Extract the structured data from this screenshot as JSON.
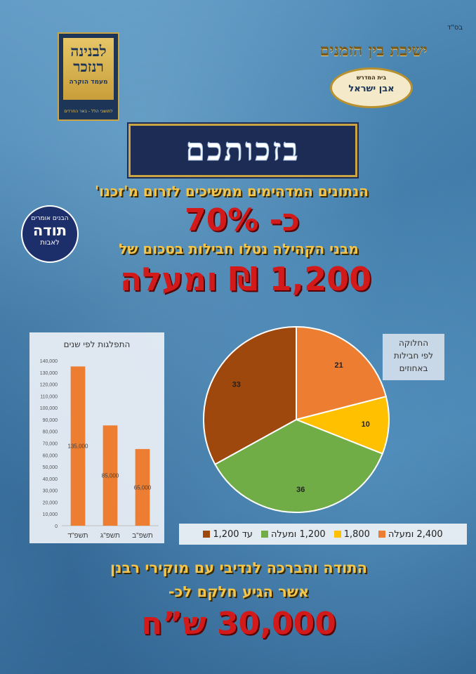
{
  "header": {
    "bsd": "בס\"ד"
  },
  "logo_left": {
    "line1": "לבנינה",
    "line2": "רנזכר",
    "subtitle": "מעמד הוקרה",
    "small": "לתושבי הלל - באר החרדים"
  },
  "logo_right": {
    "arc": "ישיבת בין הזמנים",
    "top": "בית המדרש",
    "name": "אבן ישראל"
  },
  "title": "בזכותכם",
  "headline": "הנתונים המדהימים ממשיכים לזרום מ'זכנו'",
  "percent_line": "כ- 70%",
  "subline": "מבני הקהילה נטלו חבילות בסכום של",
  "amount_line": "1,200 ₪ ומעלה",
  "badge": {
    "top": "הבנים אומרים",
    "main": "תודה",
    "bottom": "לאבות"
  },
  "thanks": {
    "line1": "התודה והברכה לנדיבי עם מוקירי רבנן",
    "line2": "אשר הגיע חלקם לכ-",
    "total": "30,000 ש”ח"
  },
  "chart_data": [
    {
      "type": "bar",
      "title": "התפלגות לפי שנים",
      "categories": [
        "תשפ\"ב",
        "תשפ\"ג",
        "תשפ\"ד"
      ],
      "values": [
        65000,
        85000,
        135000
      ],
      "value_labels": [
        "65,000",
        "85,000",
        "135,000"
      ],
      "ylim": [
        0,
        140000
      ],
      "yticks": [
        "0",
        "10,000",
        "20,000",
        "30,000",
        "40,000",
        "50,000",
        "60,000",
        "70,000",
        "80,000",
        "90,000",
        "100,000",
        "110,000",
        "120,000",
        "130,000",
        "140,000"
      ],
      "color": "#ED7D31"
    },
    {
      "type": "pie",
      "title_lines": [
        "החלוקה",
        "לפי חבילות",
        "באחוזים"
      ],
      "slices": [
        {
          "label": "2,400 ומעלה",
          "value": 21,
          "color": "#ED7D31"
        },
        {
          "label": "1,800",
          "value": 10,
          "color": "#FFC000"
        },
        {
          "label": "1,200 ומעלה",
          "value": 36,
          "color": "#70AD47"
        },
        {
          "label": "עד 1,200",
          "value": 33,
          "color": "#9E480E"
        }
      ],
      "legend": "bottom"
    }
  ]
}
